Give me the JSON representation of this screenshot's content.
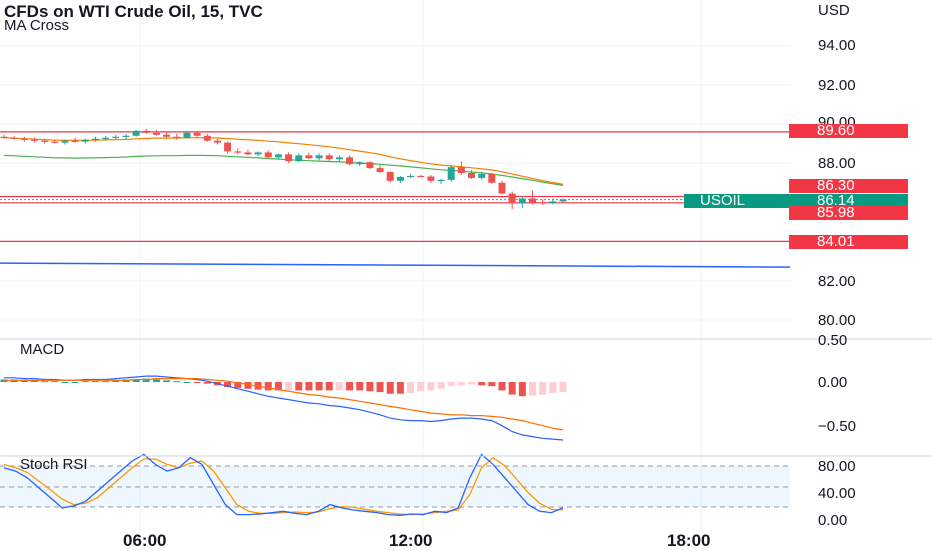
{
  "header": {
    "title": "CFDs on WTI Crude Oil, 15, TVC",
    "indicator": "MA Cross"
  },
  "price_axis": {
    "currency": "USD",
    "ticks": [
      "94.00",
      "92.00",
      "90.00",
      "88.00",
      "82.00",
      "80.00"
    ]
  },
  "badges": {
    "level_89_60": "89.60",
    "level_86_30": "86.30",
    "symbol": "USOIL",
    "last_price": "86.14",
    "level_85_98": "85.98",
    "level_84_01": "84.01"
  },
  "macd_panel": {
    "label": "MACD",
    "ticks": [
      "0.50",
      "0.00",
      "−0.50"
    ]
  },
  "stoch_panel": {
    "label": "Stoch RSI",
    "ticks": [
      "80.00",
      "40.00",
      "0.00"
    ]
  },
  "time_axis": {
    "labels": [
      "06:00",
      "12:00",
      "18:00"
    ]
  },
  "colors": {
    "up": "#26a69a",
    "down": "#ef5350",
    "level_line": "#f23645",
    "support_line": "#2962ff",
    "ma_fast": "#f57c00",
    "ma_slow": "#4caf50",
    "macd_line": "#2962ff",
    "signal_line": "#ff6d00",
    "stoch_k": "#2962ff",
    "stoch_d": "#ff9800",
    "symbol_badge": "#089981"
  },
  "chart_data": [
    {
      "type": "candlestick",
      "x_unit": "time (15 min bars)",
      "y_unit": "USD",
      "ylim": [
        79.5,
        95.5
      ],
      "price_levels": [
        89.6,
        86.3,
        85.98,
        84.01
      ],
      "last_price": 86.14,
      "trendline": {
        "start": 82.9,
        "end": 82.7
      },
      "ohlc": [
        [
          89.35,
          89.45,
          89.25,
          89.3
        ],
        [
          89.3,
          89.4,
          89.2,
          89.25
        ],
        [
          89.25,
          89.35,
          89.1,
          89.2
        ],
        [
          89.2,
          89.3,
          89.05,
          89.15
        ],
        [
          89.15,
          89.25,
          89.0,
          89.1
        ],
        [
          89.1,
          89.2,
          89.0,
          89.05
        ],
        [
          89.05,
          89.2,
          88.95,
          89.15
        ],
        [
          89.15,
          89.3,
          89.05,
          89.1
        ],
        [
          89.1,
          89.25,
          89.0,
          89.2
        ],
        [
          89.2,
          89.35,
          89.1,
          89.25
        ],
        [
          89.25,
          89.4,
          89.15,
          89.3
        ],
        [
          89.3,
          89.45,
          89.2,
          89.35
        ],
        [
          89.35,
          89.5,
          89.25,
          89.4
        ],
        [
          89.4,
          89.7,
          89.35,
          89.65
        ],
        [
          89.65,
          89.75,
          89.5,
          89.55
        ],
        [
          89.55,
          89.7,
          89.4,
          89.45
        ],
        [
          89.45,
          89.6,
          89.3,
          89.35
        ],
        [
          89.35,
          89.5,
          89.2,
          89.3
        ],
        [
          89.3,
          89.6,
          89.25,
          89.55
        ],
        [
          89.55,
          89.65,
          89.3,
          89.4
        ],
        [
          89.4,
          89.5,
          89.1,
          89.15
        ],
        [
          89.15,
          89.25,
          88.95,
          89.05
        ],
        [
          89.05,
          89.1,
          88.5,
          88.6
        ],
        [
          88.6,
          88.75,
          88.45,
          88.55
        ],
        [
          88.55,
          88.7,
          88.4,
          88.45
        ],
        [
          88.45,
          88.6,
          88.35,
          88.55
        ],
        [
          88.55,
          88.65,
          88.25,
          88.3
        ],
        [
          88.3,
          88.5,
          88.2,
          88.45
        ],
        [
          88.45,
          88.55,
          88.0,
          88.1
        ],
        [
          88.1,
          88.5,
          88.05,
          88.4
        ],
        [
          88.4,
          88.55,
          88.2,
          88.25
        ],
        [
          88.25,
          88.5,
          88.15,
          88.4
        ],
        [
          88.4,
          88.5,
          88.1,
          88.2
        ],
        [
          88.2,
          88.4,
          88.1,
          88.3
        ],
        [
          88.3,
          88.4,
          87.9,
          87.95
        ],
        [
          87.95,
          88.1,
          87.85,
          88.05
        ],
        [
          88.05,
          88.1,
          87.7,
          87.75
        ],
        [
          87.75,
          87.9,
          87.5,
          87.55
        ],
        [
          87.55,
          87.6,
          87.0,
          87.1
        ],
        [
          87.1,
          87.35,
          87.0,
          87.3
        ],
        [
          87.3,
          87.45,
          87.25,
          87.35
        ],
        [
          87.35,
          87.4,
          87.3,
          87.32
        ],
        [
          87.32,
          87.4,
          87.0,
          87.1
        ],
        [
          87.1,
          87.2,
          86.95,
          87.15
        ],
        [
          87.15,
          87.9,
          87.05,
          87.8
        ],
        [
          87.8,
          88.1,
          87.4,
          87.5
        ],
        [
          87.5,
          87.65,
          87.2,
          87.25
        ],
        [
          87.25,
          87.55,
          87.15,
          87.45
        ],
        [
          87.45,
          87.5,
          86.95,
          87.0
        ],
        [
          87.0,
          87.1,
          86.4,
          86.45
        ],
        [
          86.45,
          86.55,
          85.65,
          85.95
        ],
        [
          85.95,
          86.3,
          85.7,
          86.2
        ],
        [
          86.2,
          86.6,
          85.9,
          86.0
        ],
        [
          86.0,
          86.15,
          85.85,
          85.95
        ],
        [
          85.95,
          86.2,
          85.9,
          86.05
        ],
        [
          86.05,
          86.2,
          86.0,
          86.14
        ]
      ]
    },
    {
      "type": "line",
      "title": "MACD",
      "ylim": [
        -0.75,
        0.5
      ],
      "series": [
        {
          "values": [
            0.05,
            0.05,
            0.04,
            0.04,
            0.03,
            0.03,
            0.02,
            0.02,
            0.03,
            0.03,
            0.03,
            0.04,
            0.05,
            0.06,
            0.07,
            0.07,
            0.06,
            0.05,
            0.04,
            0.03,
            0.01,
            -0.02,
            -0.05,
            -0.08,
            -0.11,
            -0.14,
            -0.17,
            -0.19,
            -0.21,
            -0.23,
            -0.25,
            -0.26,
            -0.28,
            -0.29,
            -0.31,
            -0.33,
            -0.36,
            -0.39,
            -0.43,
            -0.45,
            -0.46,
            -0.46,
            -0.47,
            -0.46,
            -0.44,
            -0.43,
            -0.43,
            -0.44,
            -0.46,
            -0.52,
            -0.59,
            -0.63,
            -0.65,
            -0.67,
            -0.68,
            -0.69
          ]
        },
        {
          "values": [
            0.02,
            0.02,
            0.02,
            0.02,
            0.02,
            0.02,
            0.02,
            0.02,
            0.02,
            0.02,
            0.02,
            0.02,
            0.02,
            0.03,
            0.03,
            0.04,
            0.04,
            0.04,
            0.04,
            0.04,
            0.03,
            0.02,
            0.01,
            -0.01,
            -0.03,
            -0.05,
            -0.07,
            -0.09,
            -0.11,
            -0.13,
            -0.15,
            -0.16,
            -0.18,
            -0.19,
            -0.21,
            -0.23,
            -0.25,
            -0.27,
            -0.29,
            -0.31,
            -0.33,
            -0.35,
            -0.37,
            -0.38,
            -0.39,
            -0.39,
            -0.4,
            -0.4,
            -0.41,
            -0.42,
            -0.44,
            -0.46,
            -0.49,
            -0.52,
            -0.55,
            -0.57
          ]
        }
      ]
    },
    {
      "type": "line",
      "title": "Stoch RSI",
      "ylim": [
        0,
        100
      ],
      "series": [
        {
          "values": [
            75,
            70,
            60,
            45,
            30,
            15,
            18,
            25,
            40,
            55,
            70,
            85,
            95,
            80,
            70,
            75,
            90,
            80,
            50,
            20,
            5,
            5,
            6,
            8,
            10,
            7,
            5,
            10,
            20,
            15,
            12,
            10,
            8,
            5,
            4,
            6,
            5,
            10,
            8,
            15,
            60,
            95,
            80,
            60,
            40,
            20,
            10,
            8,
            15
          ]
        },
        {
          "values": [
            80,
            75,
            68,
            55,
            42,
            28,
            20,
            22,
            30,
            45,
            60,
            75,
            88,
            88,
            80,
            75,
            82,
            85,
            70,
            45,
            20,
            10,
            7,
            7,
            8,
            9,
            8,
            9,
            14,
            17,
            16,
            13,
            10,
            8,
            6,
            5,
            6,
            8,
            10,
            12,
            35,
            75,
            90,
            78,
            58,
            38,
            22,
            13,
            12
          ]
        }
      ]
    }
  ]
}
